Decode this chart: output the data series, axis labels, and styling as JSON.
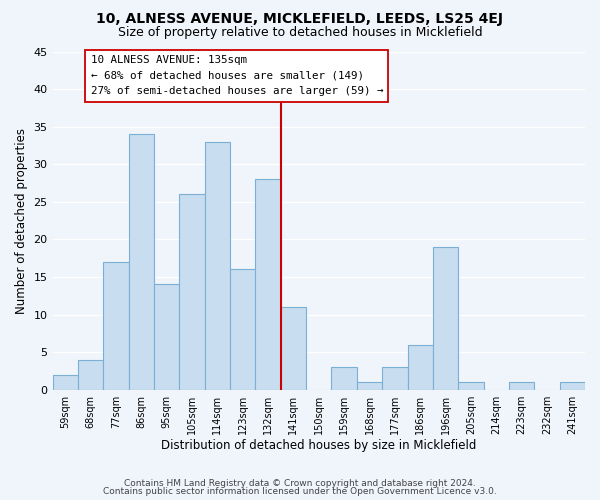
{
  "title": "10, ALNESS AVENUE, MICKLEFIELD, LEEDS, LS25 4EJ",
  "subtitle": "Size of property relative to detached houses in Micklefield",
  "xlabel": "Distribution of detached houses by size in Micklefield",
  "ylabel": "Number of detached properties",
  "footer_lines": [
    "Contains HM Land Registry data © Crown copyright and database right 2024.",
    "Contains public sector information licensed under the Open Government Licence v3.0."
  ],
  "bin_labels": [
    "59sqm",
    "68sqm",
    "77sqm",
    "86sqm",
    "95sqm",
    "105sqm",
    "114sqm",
    "123sqm",
    "132sqm",
    "141sqm",
    "150sqm",
    "159sqm",
    "168sqm",
    "177sqm",
    "186sqm",
    "196sqm",
    "205sqm",
    "214sqm",
    "223sqm",
    "232sqm",
    "241sqm"
  ],
  "bar_heights": [
    2,
    4,
    17,
    34,
    14,
    26,
    33,
    16,
    28,
    11,
    0,
    3,
    1,
    3,
    6,
    19,
    1,
    0,
    1,
    0,
    1
  ],
  "bar_color": "#c8ddef",
  "bar_edge_color": "#7aafd6",
  "highlight_bar_index": 8,
  "highlight_line_color": "#cc0000",
  "annotation_line1": "10 ALNESS AVENUE: 135sqm",
  "annotation_line2": "← 68% of detached houses are smaller (149)",
  "annotation_line3": "27% of semi-detached houses are larger (59) →",
  "annotation_box_edge_color": "#cc0000",
  "annotation_box_fill": "#ffffff",
  "ylim": [
    0,
    45
  ],
  "yticks": [
    0,
    5,
    10,
    15,
    20,
    25,
    30,
    35,
    40,
    45
  ],
  "background_color": "#f0f4fb",
  "grid_color": "#ffffff",
  "title_fontsize": 10,
  "subtitle_fontsize": 9
}
